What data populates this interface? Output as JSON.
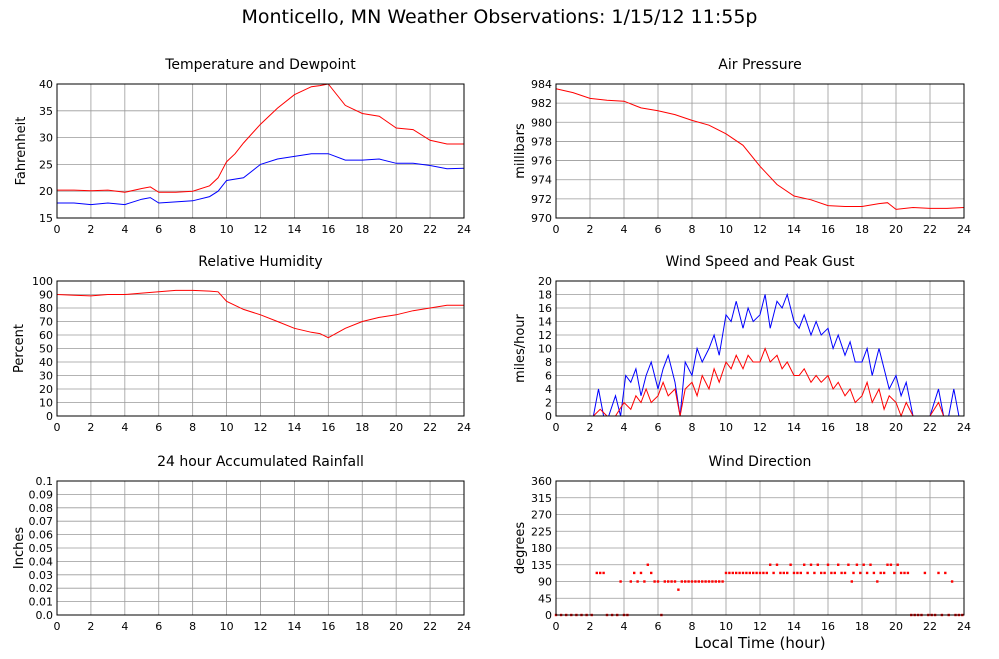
{
  "title": "Monticello, MN Weather Observations: 1/15/12 11:55p",
  "x_axis_title": "Local Time (hour)",
  "colors": {
    "red": "#ff0000",
    "blue": "#0000ff",
    "grid": "#9a9a9a"
  },
  "chart_data": [
    {
      "id": "temp",
      "type": "line",
      "title": "Temperature and Dewpoint",
      "ylabel": "Fahrenheit",
      "xlim": [
        0,
        24
      ],
      "ylim": [
        15,
        40
      ],
      "xticks": [
        0,
        2,
        4,
        6,
        8,
        10,
        12,
        14,
        16,
        18,
        20,
        22,
        24
      ],
      "yticks": [
        15,
        20,
        25,
        30,
        35,
        40
      ],
      "grid": true,
      "series": [
        {
          "color": "#ff0000",
          "x": [
            0,
            1,
            2,
            3,
            4,
            5,
            5.5,
            6,
            7,
            8,
            9,
            9.5,
            10,
            10.5,
            11,
            12,
            13,
            14,
            15,
            15.5,
            16,
            17,
            18,
            19,
            20,
            21,
            22,
            23,
            24
          ],
          "y": [
            20.2,
            20.2,
            20.1,
            20.2,
            19.8,
            20.5,
            20.8,
            19.8,
            19.8,
            20.0,
            21.0,
            22.5,
            25.5,
            27,
            29,
            32.5,
            35.5,
            38,
            39.5,
            39.7,
            40,
            36,
            34.5,
            34,
            31.8,
            31.5,
            29.5,
            28.8,
            28.8
          ]
        },
        {
          "color": "#0000ff",
          "x": [
            0,
            1,
            2,
            3,
            4,
            5,
            5.5,
            6,
            7,
            8,
            9,
            9.5,
            10,
            11,
            12,
            13,
            14,
            15,
            16,
            17,
            18,
            19,
            20,
            21,
            22,
            23,
            24
          ],
          "y": [
            17.8,
            17.8,
            17.5,
            17.8,
            17.5,
            18.5,
            18.8,
            17.8,
            18.0,
            18.2,
            19.0,
            20,
            22,
            22.5,
            25,
            26,
            26.5,
            27,
            27,
            25.8,
            25.8,
            26,
            25.2,
            25.2,
            24.8,
            24.2,
            24.3
          ]
        }
      ]
    },
    {
      "id": "pressure",
      "type": "line",
      "title": "Air Pressure",
      "ylabel": "millibars",
      "xlim": [
        0,
        24
      ],
      "ylim": [
        970,
        984
      ],
      "xticks": [
        0,
        2,
        4,
        6,
        8,
        10,
        12,
        14,
        16,
        18,
        20,
        22,
        24
      ],
      "yticks": [
        970,
        972,
        974,
        976,
        978,
        980,
        982,
        984
      ],
      "grid": true,
      "series": [
        {
          "color": "#ff0000",
          "x": [
            0,
            1,
            2,
            3,
            4,
            5,
            6,
            7,
            8,
            9,
            10,
            11,
            12,
            13,
            14,
            15,
            16,
            17,
            18,
            19,
            19.5,
            20,
            21,
            22,
            23,
            24
          ],
          "y": [
            983.5,
            983.1,
            982.5,
            982.3,
            982.2,
            981.5,
            981.2,
            980.8,
            980.2,
            979.7,
            978.8,
            977.6,
            975.4,
            973.5,
            972.3,
            971.9,
            971.3,
            971.2,
            971.2,
            971.5,
            971.6,
            970.9,
            971.1,
            971.0,
            971.0,
            971.1
          ]
        }
      ]
    },
    {
      "id": "humidity",
      "type": "line",
      "title": "Relative Humidity",
      "ylabel": "Percent",
      "xlim": [
        0,
        24
      ],
      "ylim": [
        0,
        100
      ],
      "xticks": [
        0,
        2,
        4,
        6,
        8,
        10,
        12,
        14,
        16,
        18,
        20,
        22,
        24
      ],
      "yticks": [
        0,
        10,
        20,
        30,
        40,
        50,
        60,
        70,
        80,
        90,
        100
      ],
      "grid": true,
      "series": [
        {
          "color": "#ff0000",
          "x": [
            0,
            1,
            2,
            3,
            4,
            5,
            6,
            7,
            8,
            9,
            9.5,
            10,
            11,
            12,
            13,
            14,
            15,
            15.5,
            16,
            17,
            18,
            19,
            20,
            21,
            22,
            23,
            24
          ],
          "y": [
            90,
            89.5,
            89,
            90,
            90,
            91,
            92,
            93,
            93,
            92.5,
            92,
            85,
            79,
            75,
            70,
            65,
            62,
            61,
            58,
            65,
            70,
            73,
            75,
            78,
            80,
            82,
            82
          ]
        }
      ]
    },
    {
      "id": "wind",
      "type": "line",
      "title": "Wind Speed and Peak Gust",
      "ylabel": "miles/hour",
      "xlim": [
        0,
        24
      ],
      "ylim": [
        0,
        20
      ],
      "xticks": [
        0,
        2,
        4,
        6,
        8,
        10,
        12,
        14,
        16,
        18,
        20,
        22,
        24
      ],
      "yticks": [
        0,
        2,
        4,
        6,
        8,
        10,
        12,
        14,
        16,
        18,
        20
      ],
      "grid": true,
      "series": [
        {
          "color": "#0000ff",
          "x": [
            0,
            2.2,
            2.5,
            2.8,
            3.1,
            3.5,
            3.8,
            4.1,
            4.4,
            4.7,
            5.0,
            5.3,
            5.6,
            6.0,
            6.3,
            6.6,
            7.0,
            7.3,
            7.6,
            8.0,
            8.3,
            8.6,
            9.0,
            9.3,
            9.6,
            10.0,
            10.3,
            10.6,
            11.0,
            11.3,
            11.6,
            12.0,
            12.3,
            12.6,
            13.0,
            13.3,
            13.6,
            14.0,
            14.3,
            14.6,
            15.0,
            15.3,
            15.6,
            16.0,
            16.3,
            16.6,
            17.0,
            17.3,
            17.6,
            18.0,
            18.3,
            18.6,
            19.0,
            19.3,
            19.6,
            20.0,
            20.3,
            20.6,
            21.0,
            21.5,
            22.0,
            22.5,
            22.8,
            23.1,
            23.4,
            23.7,
            24.0
          ],
          "y": [
            0,
            0,
            4,
            0,
            0,
            3,
            0,
            6,
            5,
            7,
            3,
            6,
            8,
            4,
            7,
            9,
            5,
            0,
            8,
            6,
            10,
            8,
            10,
            12,
            9,
            15,
            14,
            17,
            13,
            16,
            14,
            15,
            18,
            13,
            17,
            16,
            18,
            14,
            13,
            15,
            12,
            14,
            12,
            13,
            10,
            12,
            9,
            11,
            8,
            8,
            10,
            6,
            10,
            7,
            4,
            6,
            3,
            5,
            0,
            0,
            0,
            4,
            0,
            0,
            4,
            0,
            0
          ]
        },
        {
          "color": "#ff0000",
          "x": [
            0,
            2.2,
            2.6,
            3.0,
            3.5,
            4.0,
            4.4,
            4.7,
            5.0,
            5.3,
            5.6,
            6.0,
            6.3,
            6.6,
            7.0,
            7.3,
            7.6,
            8.0,
            8.3,
            8.6,
            9.0,
            9.3,
            9.6,
            10.0,
            10.3,
            10.6,
            11.0,
            11.3,
            11.6,
            12.0,
            12.3,
            12.6,
            13.0,
            13.3,
            13.6,
            14.0,
            14.3,
            14.6,
            15.0,
            15.3,
            15.6,
            16.0,
            16.3,
            16.6,
            17.0,
            17.3,
            17.6,
            18.0,
            18.3,
            18.6,
            19.0,
            19.3,
            19.6,
            20.0,
            20.3,
            20.6,
            21.0,
            22.0,
            22.5,
            22.8,
            23.1,
            24.0
          ],
          "y": [
            0,
            0,
            1,
            0,
            0,
            2,
            1,
            3,
            2,
            4,
            2,
            3,
            5,
            3,
            4,
            0,
            4,
            5,
            3,
            6,
            4,
            7,
            5,
            8,
            7,
            9,
            7,
            9,
            8,
            8,
            10,
            8,
            9,
            7,
            8,
            6,
            6,
            7,
            5,
            6,
            5,
            6,
            4,
            5,
            3,
            4,
            2,
            3,
            5,
            2,
            4,
            1,
            3,
            2,
            0,
            2,
            0,
            0,
            2,
            0,
            0,
            0
          ]
        }
      ]
    },
    {
      "id": "rain",
      "type": "line",
      "title": "24 hour Accumulated Rainfall",
      "ylabel": "Inches",
      "xlim": [
        0,
        24
      ],
      "ylim": [
        0.0,
        0.1
      ],
      "xticks": [
        0,
        2,
        4,
        6,
        8,
        10,
        12,
        14,
        16,
        18,
        20,
        22,
        24
      ],
      "yticks": [
        0.0,
        0.01,
        0.02,
        0.03,
        0.04,
        0.05,
        0.06,
        0.07,
        0.08,
        0.09,
        0.1
      ],
      "ytick_labels": [
        "0.0",
        "0.01",
        "0.02",
        "0.03",
        "0.04",
        "0.05",
        "0.06",
        "0.07",
        "0.08",
        "0.09",
        "0.1"
      ],
      "grid": true,
      "series": [
        {
          "color": "#ff0000",
          "x": [
            0,
            24
          ],
          "y": [
            0,
            0
          ]
        }
      ]
    },
    {
      "id": "direction",
      "type": "scatter",
      "title": "Wind Direction",
      "ylabel": "degrees",
      "xlim": [
        0,
        24
      ],
      "ylim": [
        0,
        360
      ],
      "xticks": [
        0,
        2,
        4,
        6,
        8,
        10,
        12,
        14,
        16,
        18,
        20,
        22,
        24
      ],
      "yticks": [
        0,
        45,
        90,
        135,
        180,
        225,
        270,
        315,
        360
      ],
      "grid": true,
      "series": [
        {
          "color": "#ff0000",
          "x": [
            0.0,
            0.3,
            0.6,
            0.9,
            1.2,
            1.5,
            1.8,
            2.1,
            2.4,
            2.6,
            2.8,
            3.0,
            3.3,
            3.6,
            3.8,
            4.0,
            4.2,
            4.4,
            4.6,
            4.8,
            5.0,
            5.2,
            5.4,
            5.6,
            5.8,
            6.0,
            6.2,
            6.4,
            6.6,
            6.8,
            7.0,
            7.2,
            7.4,
            7.6,
            7.8,
            8.0,
            8.2,
            8.4,
            8.6,
            8.8,
            9.0,
            9.2,
            9.4,
            9.6,
            9.8,
            10.0,
            10.2,
            10.4,
            10.6,
            10.8,
            11.0,
            11.2,
            11.4,
            11.6,
            11.8,
            12.0,
            12.2,
            12.4,
            12.6,
            12.8,
            13.0,
            13.2,
            13.4,
            13.6,
            13.8,
            14.0,
            14.2,
            14.4,
            14.6,
            14.8,
            15.0,
            15.2,
            15.4,
            15.6,
            15.8,
            16.0,
            16.2,
            16.4,
            16.6,
            16.8,
            17.0,
            17.2,
            17.4,
            17.5,
            17.7,
            17.9,
            18.1,
            18.3,
            18.5,
            18.7,
            18.9,
            19.1,
            19.3,
            19.5,
            19.7,
            19.9,
            20.1,
            20.3,
            20.5,
            20.7,
            20.9,
            21.1,
            21.3,
            21.5,
            21.7,
            21.9,
            22.1,
            22.3,
            22.5,
            22.7,
            22.9,
            23.1,
            23.3,
            23.5,
            23.7,
            23.9
          ],
          "y": [
            0,
            0,
            0,
            0,
            0,
            0,
            0,
            0,
            113,
            113,
            113,
            0,
            0,
            0,
            90,
            0,
            0,
            90,
            113,
            90,
            113,
            90,
            135,
            113,
            90,
            90,
            0,
            90,
            90,
            90,
            90,
            68,
            90,
            90,
            90,
            90,
            90,
            90,
            90,
            90,
            90,
            90,
            90,
            90,
            90,
            113,
            113,
            113,
            113,
            113,
            113,
            113,
            113,
            113,
            113,
            113,
            113,
            113,
            135,
            113,
            135,
            113,
            113,
            113,
            135,
            113,
            113,
            113,
            135,
            113,
            135,
            113,
            135,
            113,
            113,
            135,
            113,
            113,
            135,
            113,
            113,
            135,
            90,
            113,
            135,
            113,
            135,
            113,
            135,
            113,
            90,
            113,
            113,
            135,
            135,
            113,
            135,
            113,
            113,
            113,
            0,
            0,
            0,
            0,
            113,
            0,
            0,
            0,
            113,
            0,
            113,
            0,
            90,
            0,
            0,
            0
          ]
        }
      ]
    }
  ],
  "_unused": ""
}
